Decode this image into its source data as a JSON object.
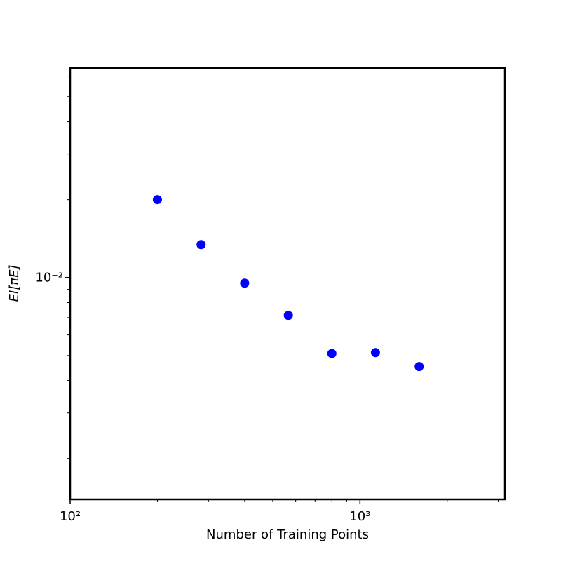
{
  "chart_data": {
    "type": "scatter",
    "xlabel": "Number of Training Points",
    "ylabel": "EI[πE]",
    "x": [
      200,
      283,
      400,
      566,
      800,
      1131,
      1600
    ],
    "series": [
      {
        "color": "#0000ff",
        "values": [
          0.02,
          0.01341,
          0.00951,
          0.00714,
          0.00509,
          0.00513,
          0.00453
        ]
      }
    ],
    "xlim": [
      100,
      3162
    ],
    "ylim": [
      0.00139,
      0.0645
    ],
    "xticks": [
      {
        "value": 100,
        "label": "10²"
      },
      {
        "value": 1000,
        "label": "10³"
      }
    ],
    "yticks": [
      {
        "value": 0.01,
        "label": "10⁻²"
      }
    ],
    "xscale": "log",
    "yscale": "log",
    "grid": false
  }
}
